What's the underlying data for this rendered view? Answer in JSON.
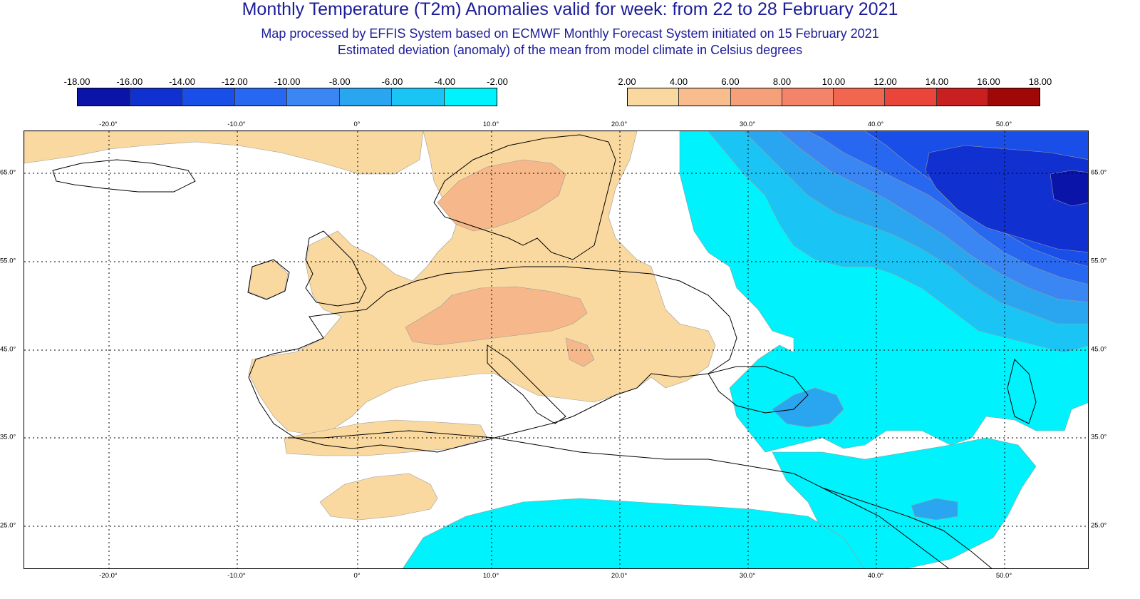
{
  "header": {
    "title": "Monthly Temperature (T2m) Anomalies valid for week: from 22 to 28 February 2021",
    "subtitle_1": "Map processed by EFFIS System based on ECMWF Monthly Forecast System initiated on 15 February 2021",
    "subtitle_2": "Estimated deviation (anomaly) of the mean from model climate in Celsius degrees"
  },
  "legend_negative": {
    "labels": [
      "-18.00",
      "-16.00",
      "-14.00",
      "-12.00",
      "-10.00",
      "-8.00",
      "-6.00",
      "-4.00",
      "-2.00"
    ],
    "colors": [
      "#0a14a8",
      "#1030d0",
      "#1a4ee8",
      "#2868f0",
      "#3a86f2",
      "#2aa6f0",
      "#1ac4f4",
      "#00f2fc"
    ]
  },
  "legend_positive": {
    "labels": [
      "2.00",
      "4.00",
      "6.00",
      "8.00",
      "10.00",
      "12.00",
      "14.00",
      "16.00",
      "18.00"
    ],
    "colors": [
      "#fad9a0",
      "#f9bc8c",
      "#f6a07a",
      "#f3846a",
      "#f0664e",
      "#e9453a",
      "#c82020",
      "#a00808"
    ]
  },
  "axes": {
    "lon_labels": [
      "-20.0°",
      "-10.0°",
      "0°",
      "10.0°",
      "20.0°",
      "30.0°",
      "40.0°",
      "50.0°"
    ],
    "lat_labels_left": [
      "65.0°",
      "55.0°",
      "45.0°",
      "35.0°",
      "25.0°"
    ],
    "lat_labels_right": [
      "65.0°",
      "55.0°",
      "45.0°",
      "35.0°",
      "25.0°"
    ]
  },
  "map_colors": {
    "warm_2_4": "#fad9a0",
    "warm_4_6": "#f6b88a",
    "cold_2_4": "#00f2fc",
    "cold_4_6": "#1ac4f4",
    "cold_6_8": "#2aa6f0",
    "cold_8_10": "#3a86f2",
    "cold_10_12": "#2868f0",
    "cold_12_14": "#1a4ee8",
    "cold_14_16": "#1030d0",
    "cold_16_18": "#0a14a8"
  }
}
